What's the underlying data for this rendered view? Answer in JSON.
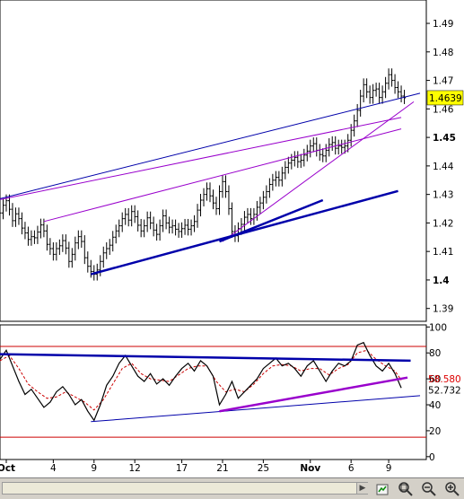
{
  "chart_data": [
    {
      "type": "candlestick",
      "title": "",
      "y_ticks": [
        "1.49",
        "1.48",
        "1.47",
        "1.46",
        "1.45",
        "1.44",
        "1.43",
        "1.42",
        "1.41",
        "1.4",
        "1.39"
      ],
      "ylim": [
        1.3855,
        1.4982
      ],
      "last_price_label": "1.4639",
      "x_ticks": [
        "Oct",
        "4",
        "9",
        "12",
        "17",
        "21",
        "25",
        "Nov",
        "6",
        "9"
      ],
      "x_tick_values": [
        2,
        17,
        30,
        43,
        58,
        71,
        84,
        99,
        112,
        124
      ],
      "xlim": [
        0,
        136
      ],
      "colors": {
        "price": "#000000",
        "trend_support": "#0000aa",
        "channel": "#9900cc",
        "label_box": "#ffff00"
      },
      "price": [
        {
          "x": 0,
          "y": 1.4235
        },
        {
          "x": 1,
          "y": 1.4262
        },
        {
          "x": 2,
          "y": 1.4278
        },
        {
          "x": 3,
          "y": 1.4248
        },
        {
          "x": 4,
          "y": 1.4208
        },
        {
          "x": 5,
          "y": 1.4232
        },
        {
          "x": 6,
          "y": 1.4215
        },
        {
          "x": 7,
          "y": 1.4182
        },
        {
          "x": 8,
          "y": 1.4165
        },
        {
          "x": 9,
          "y": 1.4142
        },
        {
          "x": 10,
          "y": 1.4152
        },
        {
          "x": 11,
          "y": 1.4148
        },
        {
          "x": 12,
          "y": 1.4168
        },
        {
          "x": 13,
          "y": 1.4193
        },
        {
          "x": 14,
          "y": 1.4172
        },
        {
          "x": 15,
          "y": 1.4125
        },
        {
          "x": 16,
          "y": 1.411
        },
        {
          "x": 17,
          "y": 1.409
        },
        {
          "x": 18,
          "y": 1.411
        },
        {
          "x": 19,
          "y": 1.412
        },
        {
          "x": 20,
          "y": 1.4138
        },
        {
          "x": 21,
          "y": 1.4112
        },
        {
          "x": 22,
          "y": 1.4065
        },
        {
          "x": 23,
          "y": 1.409
        },
        {
          "x": 24,
          "y": 1.413
        },
        {
          "x": 25,
          "y": 1.4152
        },
        {
          "x": 26,
          "y": 1.4135
        },
        {
          "x": 27,
          "y": 1.4078
        },
        {
          "x": 28,
          "y": 1.4048
        },
        {
          "x": 29,
          "y": 1.403
        },
        {
          "x": 30,
          "y": 1.402
        },
        {
          "x": 31,
          "y": 1.4035
        },
        {
          "x": 32,
          "y": 1.4065
        },
        {
          "x": 33,
          "y": 1.4095
        },
        {
          "x": 34,
          "y": 1.411
        },
        {
          "x": 35,
          "y": 1.4122
        },
        {
          "x": 36,
          "y": 1.415
        },
        {
          "x": 37,
          "y": 1.4172
        },
        {
          "x": 38,
          "y": 1.419
        },
        {
          "x": 39,
          "y": 1.4215
        },
        {
          "x": 40,
          "y": 1.423
        },
        {
          "x": 41,
          "y": 1.421
        },
        {
          "x": 42,
          "y": 1.424
        },
        {
          "x": 43,
          "y": 1.4222
        },
        {
          "x": 44,
          "y": 1.4192
        },
        {
          "x": 45,
          "y": 1.4172
        },
        {
          "x": 46,
          "y": 1.419
        },
        {
          "x": 47,
          "y": 1.4218
        },
        {
          "x": 48,
          "y": 1.42
        },
        {
          "x": 49,
          "y": 1.4175
        },
        {
          "x": 50,
          "y": 1.416
        },
        {
          "x": 51,
          "y": 1.419
        },
        {
          "x": 52,
          "y": 1.4225
        },
        {
          "x": 53,
          "y": 1.42
        },
        {
          "x": 54,
          "y": 1.4185
        },
        {
          "x": 55,
          "y": 1.419
        },
        {
          "x": 56,
          "y": 1.4178
        },
        {
          "x": 57,
          "y": 1.417
        },
        {
          "x": 58,
          "y": 1.418
        },
        {
          "x": 59,
          "y": 1.4192
        },
        {
          "x": 60,
          "y": 1.4178
        },
        {
          "x": 61,
          "y": 1.419
        },
        {
          "x": 62,
          "y": 1.4205
        },
        {
          "x": 63,
          "y": 1.4245
        },
        {
          "x": 64,
          "y": 1.428
        },
        {
          "x": 65,
          "y": 1.43
        },
        {
          "x": 66,
          "y": 1.432
        },
        {
          "x": 67,
          "y": 1.4295
        },
        {
          "x": 68,
          "y": 1.427
        },
        {
          "x": 69,
          "y": 1.425
        },
        {
          "x": 70,
          "y": 1.431
        },
        {
          "x": 71,
          "y": 1.4345
        },
        {
          "x": 72,
          "y": 1.431
        },
        {
          "x": 73,
          "y": 1.425
        },
        {
          "x": 74,
          "y": 1.417
        },
        {
          "x": 75,
          "y": 1.4155
        },
        {
          "x": 76,
          "y": 1.418
        },
        {
          "x": 77,
          "y": 1.4195
        },
        {
          "x": 78,
          "y": 1.422
        },
        {
          "x": 79,
          "y": 1.423
        },
        {
          "x": 80,
          "y": 1.4215
        },
        {
          "x": 81,
          "y": 1.423
        },
        {
          "x": 82,
          "y": 1.4255
        },
        {
          "x": 83,
          "y": 1.427
        },
        {
          "x": 84,
          "y": 1.429
        },
        {
          "x": 85,
          "y": 1.431
        },
        {
          "x": 86,
          "y": 1.4335
        },
        {
          "x": 87,
          "y": 1.435
        },
        {
          "x": 88,
          "y": 1.436
        },
        {
          "x": 89,
          "y": 1.435
        },
        {
          "x": 90,
          "y": 1.4375
        },
        {
          "x": 91,
          "y": 1.4395
        },
        {
          "x": 92,
          "y": 1.441
        },
        {
          "x": 93,
          "y": 1.442
        },
        {
          "x": 94,
          "y": 1.443
        },
        {
          "x": 95,
          "y": 1.4415
        },
        {
          "x": 96,
          "y": 1.442
        },
        {
          "x": 97,
          "y": 1.4438
        },
        {
          "x": 98,
          "y": 1.4452
        },
        {
          "x": 99,
          "y": 1.447
        },
        {
          "x": 100,
          "y": 1.4478
        },
        {
          "x": 101,
          "y": 1.4455
        },
        {
          "x": 102,
          "y": 1.444
        },
        {
          "x": 103,
          "y": 1.4435
        },
        {
          "x": 104,
          "y": 1.4455
        },
        {
          "x": 105,
          "y": 1.4475
        },
        {
          "x": 106,
          "y": 1.4482
        },
        {
          "x": 107,
          "y": 1.4462
        },
        {
          "x": 108,
          "y": 1.447
        },
        {
          "x": 109,
          "y": 1.4465
        },
        {
          "x": 110,
          "y": 1.447
        },
        {
          "x": 111,
          "y": 1.449
        },
        {
          "x": 112,
          "y": 1.4525
        },
        {
          "x": 113,
          "y": 1.4558
        },
        {
          "x": 114,
          "y": 1.4595
        },
        {
          "x": 115,
          "y": 1.4645
        },
        {
          "x": 116,
          "y": 1.4685
        },
        {
          "x": 117,
          "y": 1.466
        },
        {
          "x": 118,
          "y": 1.464
        },
        {
          "x": 119,
          "y": 1.4665
        },
        {
          "x": 120,
          "y": 1.467
        },
        {
          "x": 121,
          "y": 1.464
        },
        {
          "x": 122,
          "y": 1.466
        },
        {
          "x": 123,
          "y": 1.469
        },
        {
          "x": 124,
          "y": 1.472
        },
        {
          "x": 125,
          "y": 1.47
        },
        {
          "x": 126,
          "y": 1.4675
        },
        {
          "x": 127,
          "y": 1.466
        },
        {
          "x": 128,
          "y": 1.4645
        },
        {
          "x": 129,
          "y": 1.4639
        }
      ],
      "trendlines": [
        {
          "color": "blue_thin",
          "x1": 0,
          "y1": 1.4285,
          "x2": 134,
          "y2": 1.4655
        },
        {
          "color": "purple",
          "x1": 0,
          "y1": 1.4282,
          "x2": 128,
          "y2": 1.457
        },
        {
          "color": "purple",
          "x1": 14,
          "y1": 1.4205,
          "x2": 128,
          "y2": 1.453
        },
        {
          "color": "purple",
          "x1": 71,
          "y1": 1.4135,
          "x2": 132,
          "y2": 1.4625
        },
        {
          "color": "blue_thick",
          "x1": 29,
          "y1": 1.402,
          "x2": 127,
          "y2": 1.4312
        },
        {
          "color": "blue_thick",
          "x1": 70,
          "y1": 1.4135,
          "x2": 103,
          "y2": 1.428
        }
      ]
    },
    {
      "type": "line",
      "title": "",
      "y_ticks": [
        "100",
        "80",
        "60",
        "40",
        "20",
        "0"
      ],
      "ylim": [
        -2.2,
        101.6
      ],
      "reference_levels": [
        85,
        15
      ],
      "value_labels": [
        "58.580",
        "52.732"
      ],
      "colors": {
        "oscillator": "#000000",
        "signal": "#cc0000",
        "label_red": "#dd0000"
      },
      "oscillator": [
        {
          "x": 0,
          "y": 75
        },
        {
          "x": 2,
          "y": 82
        },
        {
          "x": 4,
          "y": 70
        },
        {
          "x": 6,
          "y": 58
        },
        {
          "x": 8,
          "y": 48
        },
        {
          "x": 10,
          "y": 52
        },
        {
          "x": 12,
          "y": 45
        },
        {
          "x": 14,
          "y": 38
        },
        {
          "x": 16,
          "y": 42
        },
        {
          "x": 18,
          "y": 50
        },
        {
          "x": 20,
          "y": 54
        },
        {
          "x": 22,
          "y": 48
        },
        {
          "x": 24,
          "y": 40
        },
        {
          "x": 26,
          "y": 44
        },
        {
          "x": 28,
          "y": 35
        },
        {
          "x": 30,
          "y": 28
        },
        {
          "x": 32,
          "y": 40
        },
        {
          "x": 34,
          "y": 55
        },
        {
          "x": 36,
          "y": 62
        },
        {
          "x": 38,
          "y": 72
        },
        {
          "x": 40,
          "y": 78
        },
        {
          "x": 42,
          "y": 70
        },
        {
          "x": 44,
          "y": 62
        },
        {
          "x": 46,
          "y": 58
        },
        {
          "x": 48,
          "y": 64
        },
        {
          "x": 50,
          "y": 56
        },
        {
          "x": 52,
          "y": 60
        },
        {
          "x": 54,
          "y": 55
        },
        {
          "x": 56,
          "y": 62
        },
        {
          "x": 58,
          "y": 68
        },
        {
          "x": 60,
          "y": 72
        },
        {
          "x": 62,
          "y": 66
        },
        {
          "x": 64,
          "y": 74
        },
        {
          "x": 66,
          "y": 70
        },
        {
          "x": 68,
          "y": 62
        },
        {
          "x": 70,
          "y": 40
        },
        {
          "x": 72,
          "y": 48
        },
        {
          "x": 74,
          "y": 58
        },
        {
          "x": 76,
          "y": 45
        },
        {
          "x": 78,
          "y": 50
        },
        {
          "x": 80,
          "y": 55
        },
        {
          "x": 82,
          "y": 60
        },
        {
          "x": 84,
          "y": 68
        },
        {
          "x": 86,
          "y": 72
        },
        {
          "x": 88,
          "y": 76
        },
        {
          "x": 90,
          "y": 70
        },
        {
          "x": 92,
          "y": 72
        },
        {
          "x": 94,
          "y": 68
        },
        {
          "x": 96,
          "y": 62
        },
        {
          "x": 98,
          "y": 70
        },
        {
          "x": 100,
          "y": 74
        },
        {
          "x": 102,
          "y": 66
        },
        {
          "x": 104,
          "y": 58
        },
        {
          "x": 106,
          "y": 66
        },
        {
          "x": 108,
          "y": 72
        },
        {
          "x": 110,
          "y": 70
        },
        {
          "x": 112,
          "y": 74
        },
        {
          "x": 114,
          "y": 86
        },
        {
          "x": 116,
          "y": 88
        },
        {
          "x": 118,
          "y": 78
        },
        {
          "x": 120,
          "y": 70
        },
        {
          "x": 122,
          "y": 66
        },
        {
          "x": 124,
          "y": 72
        },
        {
          "x": 126,
          "y": 64
        },
        {
          "x": 128,
          "y": 53
        }
      ],
      "signal": [
        {
          "x": 0,
          "y": 74
        },
        {
          "x": 3,
          "y": 78
        },
        {
          "x": 6,
          "y": 68
        },
        {
          "x": 9,
          "y": 56
        },
        {
          "x": 12,
          "y": 50
        },
        {
          "x": 15,
          "y": 45
        },
        {
          "x": 18,
          "y": 46
        },
        {
          "x": 21,
          "y": 50
        },
        {
          "x": 24,
          "y": 46
        },
        {
          "x": 27,
          "y": 42
        },
        {
          "x": 30,
          "y": 36
        },
        {
          "x": 33,
          "y": 44
        },
        {
          "x": 36,
          "y": 56
        },
        {
          "x": 39,
          "y": 68
        },
        {
          "x": 42,
          "y": 72
        },
        {
          "x": 45,
          "y": 64
        },
        {
          "x": 48,
          "y": 60
        },
        {
          "x": 51,
          "y": 59
        },
        {
          "x": 54,
          "y": 58
        },
        {
          "x": 57,
          "y": 63
        },
        {
          "x": 60,
          "y": 68
        },
        {
          "x": 63,
          "y": 70
        },
        {
          "x": 66,
          "y": 70
        },
        {
          "x": 69,
          "y": 58
        },
        {
          "x": 72,
          "y": 50
        },
        {
          "x": 75,
          "y": 52
        },
        {
          "x": 78,
          "y": 50
        },
        {
          "x": 81,
          "y": 56
        },
        {
          "x": 84,
          "y": 64
        },
        {
          "x": 87,
          "y": 70
        },
        {
          "x": 90,
          "y": 71
        },
        {
          "x": 93,
          "y": 70
        },
        {
          "x": 96,
          "y": 66
        },
        {
          "x": 99,
          "y": 68
        },
        {
          "x": 102,
          "y": 68
        },
        {
          "x": 105,
          "y": 63
        },
        {
          "x": 108,
          "y": 68
        },
        {
          "x": 111,
          "y": 71
        },
        {
          "x": 114,
          "y": 80
        },
        {
          "x": 117,
          "y": 82
        },
        {
          "x": 120,
          "y": 75
        },
        {
          "x": 123,
          "y": 70
        },
        {
          "x": 126,
          "y": 66
        },
        {
          "x": 128,
          "y": 59
        }
      ],
      "trendlines": [
        {
          "color": "blue_thick",
          "x1": 0,
          "y1": 79,
          "x2": 131,
          "y2": 74
        },
        {
          "color": "blue_thin",
          "x1": 29,
          "y1": 27,
          "x2": 134,
          "y2": 47
        },
        {
          "color": "purple_thick",
          "x1": 70,
          "y1": 35,
          "x2": 130,
          "y2": 61
        }
      ]
    }
  ],
  "toolbar": {
    "icons": [
      "scroll-right-icon",
      "chart-settings-icon",
      "zoom-fit-icon",
      "zoom-out-icon",
      "zoom-in-icon"
    ]
  }
}
